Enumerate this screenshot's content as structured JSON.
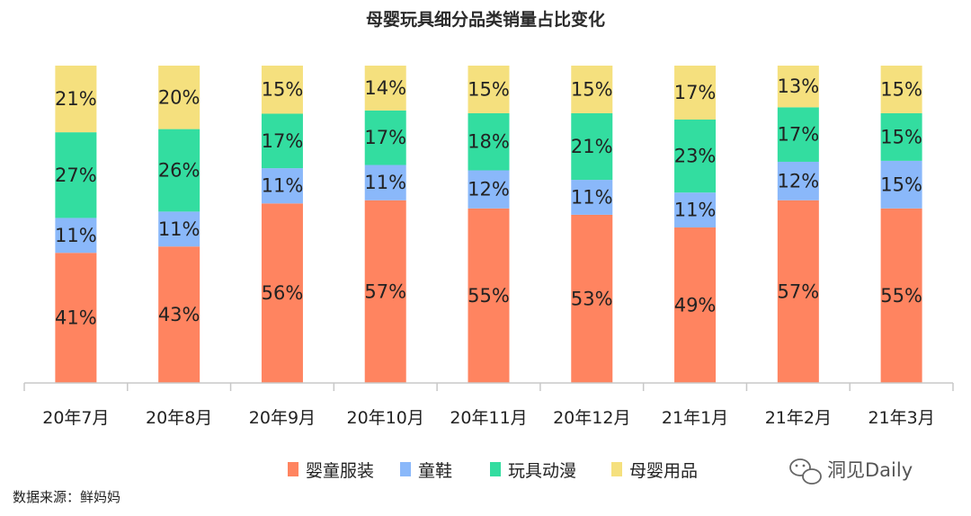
{
  "chart_data": {
    "type": "bar",
    "stacked": true,
    "percent": true,
    "title": "母婴玩具细分品类销量占比变化",
    "categories": [
      "20年7月",
      "20年8月",
      "20年9月",
      "20年10月",
      "20年11月",
      "20年12月",
      "21年1月",
      "21年2月",
      "21年3月"
    ],
    "series": [
      {
        "name": "婴童服装",
        "color": "#FF8460",
        "values": [
          41,
          43,
          56,
          57,
          55,
          53,
          49,
          57,
          55
        ]
      },
      {
        "name": "童鞋",
        "color": "#8AB8FA",
        "values": [
          11,
          11,
          11,
          11,
          12,
          11,
          11,
          12,
          15
        ]
      },
      {
        "name": "玩具动漫",
        "color": "#33DDA0",
        "values": [
          27,
          26,
          17,
          17,
          18,
          21,
          23,
          17,
          15
        ]
      },
      {
        "name": "母婴用品",
        "color": "#F5E07E",
        "values": [
          21,
          20,
          15,
          14,
          15,
          15,
          17,
          13,
          15
        ]
      }
    ],
    "label_suffix": "%",
    "xlabel": "",
    "ylabel": "",
    "ylim": [
      0,
      100
    ],
    "grid": false,
    "legend_position": "bottom"
  },
  "source_note": "数据来源：鲜妈妈",
  "brand_label": "洞见Daily"
}
